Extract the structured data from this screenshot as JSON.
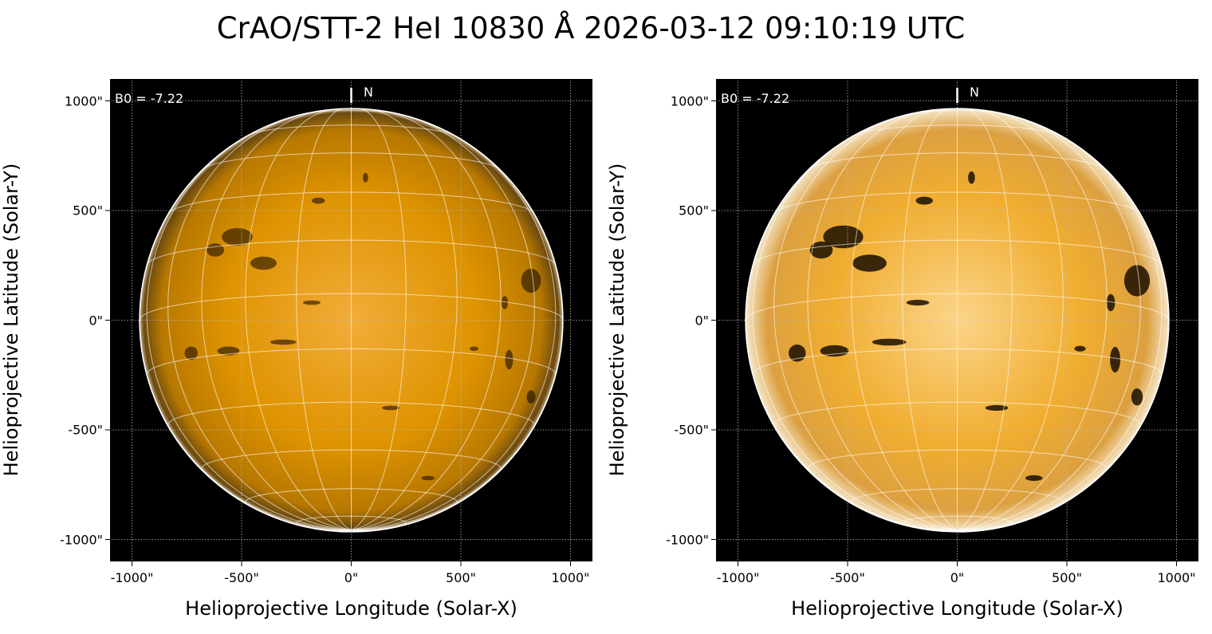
{
  "title": "CrAO/STT-2 HeI 10830 Å 2026-03-12 09:10:19 UTC",
  "chart_data": {
    "type": "heatmap",
    "title": "CrAO/STT-2 HeI 10830 Å 2026-03-12 09:10:19 UTC",
    "colors": {
      "disk": "#e09200",
      "background": "#000000",
      "grid": "#ffffff"
    },
    "panels": [
      {
        "name": "left",
        "xlabel": "Helioprojective Longitude (Solar-X)",
        "ylabel": "Helioprojective Latitude (Solar-Y)",
        "xlim": [
          -1100,
          1100
        ],
        "ylim": [
          -1100,
          1100
        ],
        "xticks": [
          -1000,
          -500,
          0,
          500,
          1000
        ],
        "yticks": [
          -1000,
          -500,
          0,
          500,
          1000
        ],
        "xtick_labels": [
          "-1000\"",
          "-500\"",
          "0\"",
          "500\"",
          "1000\""
        ],
        "ytick_labels": [
          "-1000\"",
          "-500\"",
          "0\"",
          "500\"",
          "1000\""
        ],
        "annotation": "B0 = -7.22",
        "north_label": "N",
        "b0_deg": -7.22,
        "solar_radius_arcsec": 965,
        "grid_spacing_deg": 15,
        "contrast": "normal"
      },
      {
        "name": "right",
        "xlabel": "Helioprojective Longitude (Solar-X)",
        "ylabel": "Helioprojective Latitude (Solar-Y)",
        "xlim": [
          -1100,
          1100
        ],
        "ylim": [
          -1100,
          1100
        ],
        "xticks": [
          -1000,
          -500,
          0,
          500,
          1000
        ],
        "yticks": [
          -1000,
          -500,
          0,
          500,
          1000
        ],
        "xtick_labels": [
          "-1000\"",
          "-500\"",
          "0\"",
          "500\"",
          "1000\""
        ],
        "ytick_labels": [
          "-1000\"",
          "-500\"",
          "0\"",
          "500\"",
          "1000\""
        ],
        "annotation": "B0 = -7.22",
        "north_label": "N",
        "b0_deg": -7.22,
        "solar_radius_arcsec": 965,
        "grid_spacing_deg": 15,
        "contrast": "enhanced"
      }
    ]
  }
}
